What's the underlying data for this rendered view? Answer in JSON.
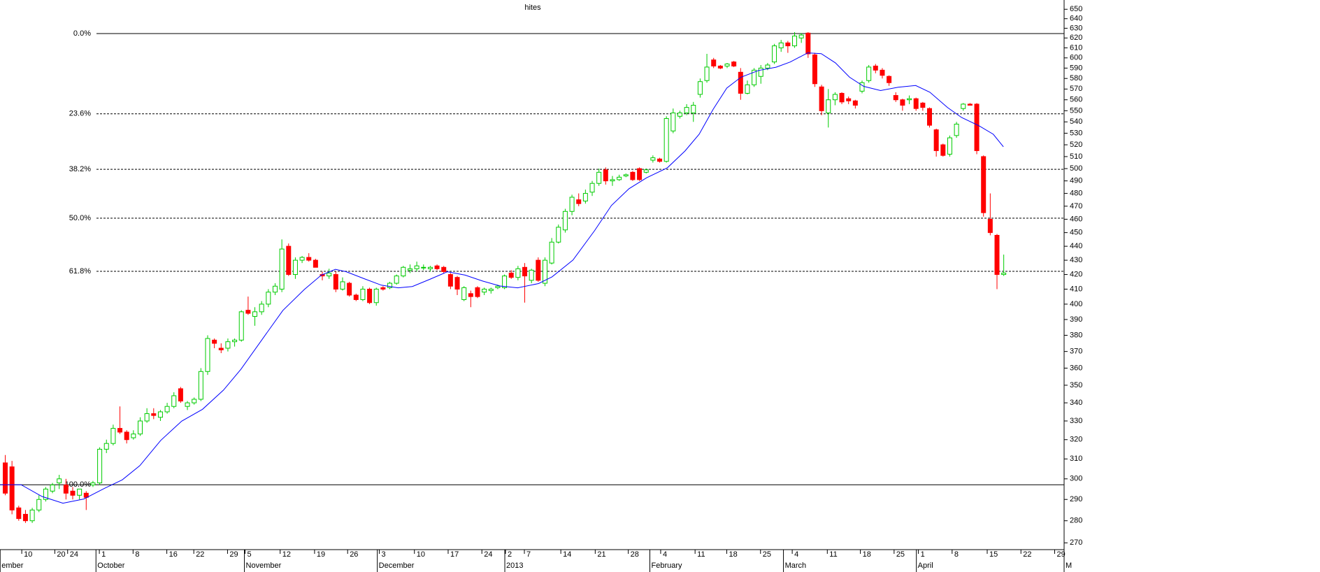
{
  "chart_data": {
    "type": "candlestick",
    "title": "hites",
    "log_y": true,
    "ylim": [
      267,
      660
    ],
    "yticks": [
      270,
      280,
      290,
      300,
      310,
      320,
      330,
      340,
      350,
      360,
      370,
      380,
      390,
      400,
      410,
      420,
      430,
      440,
      450,
      460,
      470,
      480,
      490,
      500,
      510,
      520,
      530,
      540,
      550,
      560,
      570,
      580,
      590,
      600,
      610,
      620,
      630,
      640,
      650
    ],
    "xlim": [
      -0.725,
      157
    ],
    "xticks": [
      {
        "value": 2.5,
        "label": "10"
      },
      {
        "value": 7.4,
        "label": "20"
      },
      {
        "value": 9.3,
        "label": "24"
      },
      {
        "value": 14,
        "label": "1"
      },
      {
        "value": 19,
        "label": "8"
      },
      {
        "value": 24,
        "label": "16"
      },
      {
        "value": 28,
        "label": "22"
      },
      {
        "value": 33,
        "label": "29"
      },
      {
        "value": 35.6,
        "label": "5"
      },
      {
        "value": 40.8,
        "label": "12"
      },
      {
        "value": 45.9,
        "label": "19"
      },
      {
        "value": 50.8,
        "label": "26"
      },
      {
        "value": 55.5,
        "label": "3"
      },
      {
        "value": 60.7,
        "label": "10"
      },
      {
        "value": 65.7,
        "label": "17"
      },
      {
        "value": 70.7,
        "label": "24"
      },
      {
        "value": 74.2,
        "label": "2"
      },
      {
        "value": 77,
        "label": "7"
      },
      {
        "value": 82.4,
        "label": "14"
      },
      {
        "value": 87.5,
        "label": "21"
      },
      {
        "value": 92.4,
        "label": "28"
      },
      {
        "value": 97.2,
        "label": "4"
      },
      {
        "value": 102.3,
        "label": "11"
      },
      {
        "value": 107,
        "label": "18"
      },
      {
        "value": 112,
        "label": "25"
      },
      {
        "value": 116.7,
        "label": "4"
      },
      {
        "value": 121.9,
        "label": "11"
      },
      {
        "value": 126.8,
        "label": "18"
      },
      {
        "value": 131.8,
        "label": "25"
      },
      {
        "value": 135.4,
        "label": "1"
      },
      {
        "value": 140.4,
        "label": "8"
      },
      {
        "value": 145.6,
        "label": "15"
      },
      {
        "value": 150.6,
        "label": "22"
      },
      {
        "value": 155.6,
        "label": "29"
      }
    ],
    "month_labels": [
      {
        "value": -0.7,
        "label": "ember"
      },
      {
        "value": 13.5,
        "label": "October"
      },
      {
        "value": 35.5,
        "label": "November"
      },
      {
        "value": 55.2,
        "label": "December"
      },
      {
        "value": 74.1,
        "label": "2013"
      },
      {
        "value": 95.6,
        "label": "February"
      },
      {
        "value": 115.4,
        "label": "March"
      },
      {
        "value": 135.1,
        "label": "April"
      },
      {
        "value": 157,
        "label": "M"
      }
    ],
    "up_color": "#00cc00",
    "down_color": "#ff0000",
    "ohlc": [
      [
        308,
        312,
        292,
        293
      ],
      [
        306,
        309,
        283,
        285
      ],
      [
        286,
        287,
        280,
        281
      ],
      [
        283,
        285,
        279,
        280
      ],
      [
        280,
        286,
        279,
        285
      ],
      [
        285,
        292,
        284,
        290
      ],
      [
        290,
        296,
        289,
        295
      ],
      [
        294,
        298,
        293,
        297
      ],
      [
        298,
        302,
        295,
        300
      ],
      [
        297,
        300,
        290,
        293
      ],
      [
        294,
        296,
        290,
        292
      ],
      [
        292,
        295,
        290,
        295
      ],
      [
        293,
        294,
        285,
        291
      ],
      [
        297,
        299,
        296,
        298
      ],
      [
        298,
        316,
        297,
        315
      ],
      [
        315,
        320,
        313,
        318
      ],
      [
        318,
        328,
        317,
        326
      ],
      [
        326,
        338,
        323,
        324
      ],
      [
        324,
        325,
        318,
        320
      ],
      [
        321,
        325,
        320,
        323
      ],
      [
        323,
        332,
        322,
        330
      ],
      [
        330,
        337,
        329,
        334
      ],
      [
        334,
        337,
        331,
        333
      ],
      [
        332,
        336,
        330,
        335
      ],
      [
        335,
        340,
        334,
        338
      ],
      [
        338,
        346,
        337,
        344
      ],
      [
        348,
        349,
        340,
        341
      ],
      [
        338,
        341,
        336,
        340
      ],
      [
        340,
        343,
        339,
        342
      ],
      [
        342,
        360,
        341,
        358
      ],
      [
        358,
        380,
        356,
        378
      ],
      [
        377,
        378,
        372,
        375
      ],
      [
        372,
        375,
        369,
        371
      ],
      [
        372,
        378,
        370,
        376
      ],
      [
        376,
        378,
        373,
        377
      ],
      [
        377,
        396,
        376,
        395
      ],
      [
        396,
        405,
        393,
        394
      ],
      [
        392,
        398,
        386,
        395
      ],
      [
        395,
        402,
        393,
        400
      ],
      [
        400,
        410,
        398,
        408
      ],
      [
        408,
        414,
        406,
        412
      ],
      [
        410,
        445,
        408,
        438
      ],
      [
        440,
        442,
        419,
        420
      ],
      [
        420,
        432,
        417,
        430
      ],
      [
        430,
        433,
        428,
        432
      ],
      [
        432,
        435,
        429,
        430
      ],
      [
        430,
        431,
        425,
        425
      ],
      [
        420,
        422,
        416,
        419
      ],
      [
        419,
        424,
        417,
        421
      ],
      [
        420,
        422,
        408,
        410
      ],
      [
        410,
        418,
        409,
        415
      ],
      [
        414,
        415,
        405,
        406
      ],
      [
        406,
        407,
        402,
        403
      ],
      [
        403,
        412,
        402,
        410
      ],
      [
        410,
        411,
        400,
        401
      ],
      [
        401,
        411,
        399,
        410
      ],
      [
        411,
        412,
        409,
        410
      ],
      [
        411,
        415,
        410,
        414
      ],
      [
        414,
        420,
        413,
        419
      ],
      [
        419,
        426,
        418,
        425
      ],
      [
        423,
        427,
        421,
        424
      ],
      [
        424,
        429,
        422,
        426
      ],
      [
        425,
        427,
        423,
        425
      ],
      [
        424,
        426,
        422,
        425
      ],
      [
        426,
        427,
        423,
        424
      ],
      [
        425,
        426,
        421,
        422
      ],
      [
        420,
        421,
        410,
        412
      ],
      [
        418,
        419,
        406,
        410
      ],
      [
        403,
        412,
        402,
        411
      ],
      [
        407,
        409,
        398,
        405
      ],
      [
        411,
        412,
        404,
        405
      ],
      [
        408,
        411,
        406,
        410
      ],
      [
        409,
        411,
        407,
        410
      ],
      [
        411,
        413,
        410,
        412
      ],
      [
        411,
        420,
        410,
        419
      ],
      [
        421,
        423,
        417,
        418
      ],
      [
        418,
        426,
        416,
        424
      ],
      [
        425,
        428,
        401,
        419
      ],
      [
        416,
        424,
        414,
        423
      ],
      [
        430,
        432,
        415,
        416
      ],
      [
        414,
        432,
        412,
        430
      ],
      [
        428,
        446,
        427,
        443
      ],
      [
        443,
        456,
        442,
        454
      ],
      [
        452,
        468,
        450,
        466
      ],
      [
        466,
        479,
        463,
        477
      ],
      [
        475,
        480,
        470,
        472
      ],
      [
        474,
        483,
        472,
        480
      ],
      [
        481,
        490,
        478,
        488
      ],
      [
        488,
        500,
        486,
        497
      ],
      [
        499,
        501,
        487,
        490
      ],
      [
        490,
        494,
        486,
        491
      ],
      [
        491,
        495,
        490,
        493
      ],
      [
        494,
        496,
        493,
        495
      ],
      [
        497,
        498,
        490,
        491
      ],
      [
        500,
        501,
        490,
        491
      ],
      [
        497,
        500,
        496,
        499
      ],
      [
        507,
        511,
        505,
        509
      ],
      [
        508,
        509,
        505,
        506
      ],
      [
        506,
        545,
        505,
        543
      ],
      [
        532,
        552,
        530,
        548
      ],
      [
        545,
        550,
        543,
        548
      ],
      [
        548,
        556,
        546,
        553
      ],
      [
        548,
        558,
        540,
        555
      ],
      [
        565,
        580,
        562,
        577
      ],
      [
        578,
        604,
        576,
        591
      ],
      [
        598,
        600,
        590,
        592
      ],
      [
        592,
        593,
        589,
        590
      ],
      [
        592,
        595,
        590,
        594
      ],
      [
        596,
        597,
        591,
        592
      ],
      [
        586,
        590,
        560,
        566
      ],
      [
        566,
        578,
        565,
        574
      ],
      [
        574,
        590,
        572,
        588
      ],
      [
        582,
        593,
        575,
        590
      ],
      [
        590,
        595,
        588,
        593
      ],
      [
        596,
        614,
        594,
        612
      ],
      [
        610,
        618,
        606,
        615
      ],
      [
        615,
        617,
        605,
        612
      ],
      [
        612,
        626,
        610,
        622
      ],
      [
        620,
        625,
        615,
        623
      ],
      [
        625,
        626,
        600,
        604
      ],
      [
        603,
        605,
        572,
        575
      ],
      [
        572,
        574,
        546,
        550
      ],
      [
        548,
        570,
        535,
        560
      ],
      [
        560,
        567,
        555,
        565
      ],
      [
        566,
        567,
        556,
        558
      ],
      [
        561,
        563,
        556,
        559
      ],
      [
        559,
        560,
        552,
        555
      ],
      [
        568,
        578,
        566,
        576
      ],
      [
        578,
        593,
        576,
        591
      ],
      [
        592,
        594,
        585,
        588
      ],
      [
        588,
        590,
        580,
        583
      ],
      [
        582,
        583,
        573,
        576
      ],
      [
        564,
        567,
        558,
        560
      ],
      [
        560,
        561,
        550,
        555
      ],
      [
        560,
        564,
        556,
        561
      ],
      [
        561,
        562,
        550,
        552
      ],
      [
        557,
        558,
        550,
        553
      ],
      [
        552,
        553,
        535,
        537
      ],
      [
        533,
        534,
        510,
        515
      ],
      [
        520,
        521,
        510,
        511
      ],
      [
        512,
        528,
        510,
        526
      ],
      [
        528,
        540,
        526,
        538
      ],
      [
        552,
        557,
        550,
        556
      ],
      [
        556,
        557,
        555,
        555
      ],
      [
        556,
        557,
        512,
        515
      ],
      [
        510,
        511,
        462,
        465
      ],
      [
        460,
        480,
        448,
        450
      ],
      [
        448,
        449,
        410,
        420
      ],
      [
        420,
        434,
        419,
        421
      ]
    ],
    "ma": {
      "color": "#0000ff",
      "x": [
        -0.7,
        2.4,
        5.5,
        8.6,
        11.7,
        14.8,
        17.4,
        20,
        23.1,
        26.2,
        29.3,
        32.4,
        35,
        38.1,
        41.2,
        44.4,
        46.9,
        49,
        50.6,
        53.2,
        55.8,
        58.3,
        60.4,
        63,
        65.6,
        68.2,
        70.8,
        73.4,
        76,
        79.1,
        81.1,
        84.2,
        87.4,
        89.9,
        92.5,
        95.1,
        98.2,
        100.8,
        102.9,
        105,
        107,
        109.1,
        111.7,
        114.3,
        116.4,
        119,
        121,
        123.1,
        125.2,
        127.3,
        129.8,
        132.4,
        135,
        137.1,
        139.7,
        141.8,
        144.4,
        146.5,
        148
      ],
      "values": [
        297.1,
        297.1,
        291.4,
        288.2,
        290.2,
        295.4,
        299.5,
        306.6,
        319.6,
        329.9,
        336.4,
        347.2,
        359.4,
        377.2,
        395.9,
        409.8,
        419.6,
        423.6,
        421.9,
        417.2,
        412.7,
        410.9,
        411.8,
        416.7,
        421.9,
        419.6,
        415.5,
        412.1,
        410.9,
        413.8,
        418.4,
        430.1,
        451.4,
        470.5,
        483.7,
        492.5,
        500.7,
        514.7,
        529.1,
        551.5,
        570.9,
        581.2,
        587.7,
        590.9,
        595.9,
        605,
        604.2,
        595.1,
        581.2,
        572.5,
        568.6,
        571.7,
        573.3,
        567,
        553,
        543.9,
        536.5,
        529.1,
        518.3
      ]
    },
    "fib_levels": [
      {
        "label": "0.0%",
        "value": 624.5
      },
      {
        "label": "23.6%",
        "value": 547.2
      },
      {
        "label": "38.2%",
        "value": 499.4
      },
      {
        "label": "50.0%",
        "value": 460.8
      },
      {
        "label": "61.8%",
        "value": 422.2
      },
      {
        "label": "100.0%",
        "value": 297.1
      }
    ]
  }
}
